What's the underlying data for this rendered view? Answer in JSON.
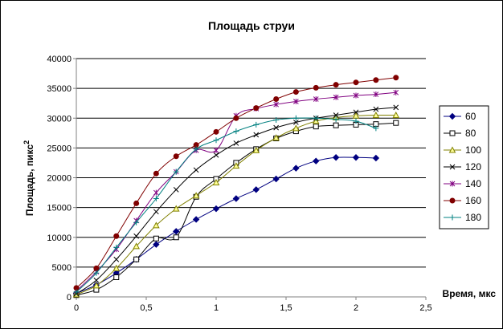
{
  "chart_data": {
    "type": "line",
    "title": "Площадь струи",
    "xlabel": "Время, мкс",
    "ylabel": "Площадь, пикс",
    "ylabel_superscript": "2",
    "xlim": [
      0,
      2.5
    ],
    "ylim": [
      0,
      40000
    ],
    "x_ticks": [
      "0",
      "0,5",
      "1",
      "1,5",
      "2",
      "2,5"
    ],
    "y_ticks": [
      "0",
      "5000",
      "10000",
      "15000",
      "20000",
      "25000",
      "30000",
      "35000",
      "40000"
    ],
    "grid": "horizontal",
    "legend": "right",
    "series": [
      {
        "name": "60",
        "color": "#000080",
        "marker": "diamond",
        "x": [
          0,
          0.143,
          0.286,
          0.429,
          0.571,
          0.714,
          0.857,
          1.0,
          1.143,
          1.286,
          1.429,
          1.571,
          1.714,
          1.857,
          2.0,
          2.143
        ],
        "y": [
          600,
          2000,
          4000,
          6300,
          8800,
          11000,
          13000,
          14800,
          16500,
          18000,
          19800,
          21600,
          22800,
          23400,
          23400,
          23300
        ]
      },
      {
        "name": "80",
        "color": "#000000",
        "marker": "square",
        "x": [
          0,
          0.143,
          0.286,
          0.429,
          0.571,
          0.714,
          0.857,
          1.0,
          1.143,
          1.286,
          1.429,
          1.571,
          1.714,
          1.857,
          2.0,
          2.143,
          2.286
        ],
        "y": [
          300,
          1200,
          3300,
          6300,
          9800,
          10000,
          16800,
          19800,
          22500,
          24800,
          26600,
          27800,
          28600,
          28800,
          28900,
          29000,
          29200
        ]
      },
      {
        "name": "100",
        "color": "#808000",
        "marker": "triangle",
        "x": [
          0,
          0.143,
          0.286,
          0.429,
          0.571,
          0.714,
          0.857,
          1.0,
          1.143,
          1.286,
          1.429,
          1.571,
          1.714,
          1.857,
          2.0,
          2.143,
          2.286
        ],
        "y": [
          400,
          1900,
          4800,
          8500,
          12000,
          14800,
          17000,
          19200,
          22000,
          24600,
          26700,
          28300,
          29500,
          30100,
          30400,
          30500,
          30500
        ]
      },
      {
        "name": "120",
        "color": "#000000",
        "marker": "x",
        "x": [
          0,
          0.143,
          0.286,
          0.429,
          0.571,
          0.714,
          0.857,
          1.0,
          1.143,
          1.286,
          1.429,
          1.571,
          1.714,
          1.857,
          2.0,
          2.143,
          2.286
        ],
        "y": [
          500,
          2800,
          6300,
          10200,
          14300,
          18000,
          21300,
          23800,
          25800,
          27200,
          28400,
          29300,
          30000,
          30500,
          31000,
          31500,
          31800
        ]
      },
      {
        "name": "140",
        "color": "#800080",
        "marker": "star",
        "x": [
          0,
          0.143,
          0.286,
          0.429,
          0.571,
          0.714,
          0.857,
          1.0,
          1.143,
          1.286,
          1.429,
          1.571,
          1.714,
          1.857,
          2.0,
          2.143,
          2.286
        ],
        "y": [
          1000,
          4200,
          8000,
          12800,
          17500,
          21000,
          24600,
          24600,
          30400,
          31600,
          32300,
          32800,
          33200,
          33500,
          33800,
          34000,
          34300
        ]
      },
      {
        "name": "160",
        "color": "#800000",
        "marker": "circle",
        "x": [
          0,
          0.143,
          0.286,
          0.429,
          0.571,
          0.714,
          0.857,
          1.0,
          1.143,
          1.286,
          1.429,
          1.571,
          1.714,
          1.857,
          2.0,
          2.143,
          2.286
        ],
        "y": [
          1500,
          4800,
          10200,
          15700,
          20700,
          23600,
          25500,
          27700,
          30000,
          31700,
          33200,
          34400,
          35100,
          35600,
          36000,
          36400,
          36800
        ]
      },
      {
        "name": "180",
        "color": "#008080",
        "marker": "plus",
        "x": [
          0,
          0.143,
          0.286,
          0.429,
          0.571,
          0.714,
          0.857,
          1.0,
          1.143,
          1.286,
          1.429,
          1.571,
          1.714,
          1.857,
          2.0,
          2.143
        ],
        "y": [
          800,
          4000,
          8300,
          12500,
          16500,
          21000,
          24800,
          26300,
          27800,
          28900,
          29700,
          30000,
          30000,
          29800,
          29500,
          28300
        ]
      }
    ]
  }
}
